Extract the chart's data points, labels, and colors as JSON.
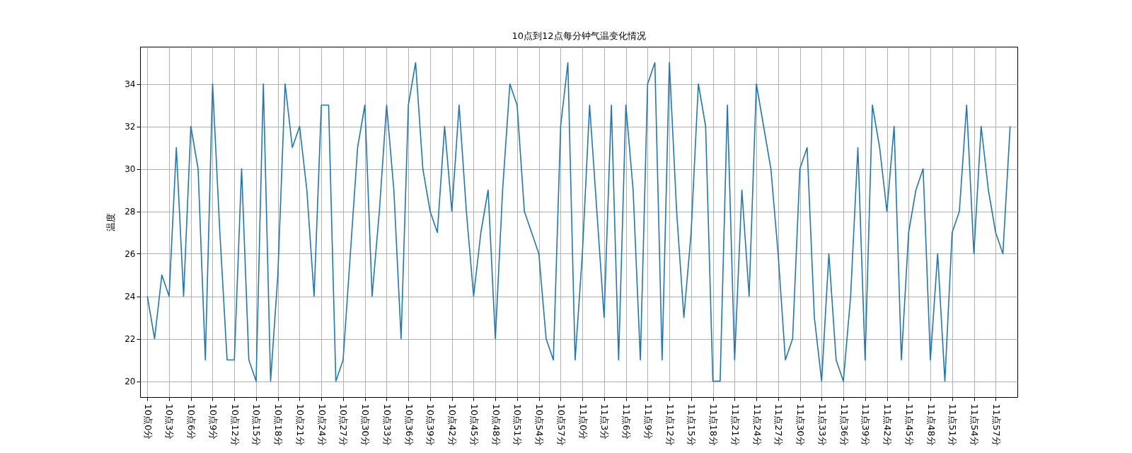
{
  "chart_data": {
    "type": "line",
    "title": "10点到12点每分钟气温变化情况",
    "ylabel": "温度",
    "categories": [
      "10点0分",
      null,
      null,
      "10点3分",
      null,
      null,
      "10点6分",
      null,
      null,
      "10点9分",
      null,
      null,
      "10点12分",
      null,
      null,
      "10点15分",
      null,
      null,
      "10点18分",
      null,
      null,
      "10点21分",
      null,
      null,
      "10点24分",
      null,
      null,
      "10点27分",
      null,
      null,
      "10点30分",
      null,
      null,
      "10点33分",
      null,
      null,
      "10点36分",
      null,
      null,
      "10点39分",
      null,
      null,
      "10点42分",
      null,
      null,
      "10点45分",
      null,
      null,
      "10点48分",
      null,
      null,
      "10点51分",
      null,
      null,
      "10点54分",
      null,
      null,
      "10点57分",
      null,
      null,
      "11点0分",
      null,
      null,
      "11点3分",
      null,
      null,
      "11点6分",
      null,
      null,
      "11点9分",
      null,
      null,
      "11点12分",
      null,
      null,
      "11点15分",
      null,
      null,
      "11点18分",
      null,
      null,
      "11点21分",
      null,
      null,
      "11点24分",
      null,
      null,
      "11点27分",
      null,
      null,
      "11点30分",
      null,
      null,
      "11点33分",
      null,
      null,
      "11点36分",
      null,
      null,
      "11点39分",
      null,
      null,
      "11点42分",
      null,
      null,
      "11点45分",
      null,
      null,
      "11点48分",
      null,
      null,
      "11点51分",
      null,
      null,
      "11点54分",
      null,
      null,
      "11点57分",
      null,
      null
    ],
    "series": [
      {
        "color": "#1f77b4",
        "values": [
          24,
          22,
          25,
          24,
          31,
          24,
          32,
          30,
          21,
          34,
          27,
          21,
          21,
          30,
          21,
          20,
          34,
          20,
          25,
          34,
          31,
          32,
          29,
          24,
          33,
          33,
          20,
          21,
          26,
          31,
          33,
          24,
          28,
          33,
          29,
          22,
          33,
          35,
          30,
          28,
          27,
          32,
          28,
          33,
          28,
          24,
          27,
          29,
          22,
          29,
          34,
          33,
          28,
          27,
          26,
          22,
          21,
          32,
          35,
          21,
          26,
          33,
          28,
          23,
          33,
          21,
          33,
          29,
          21,
          34,
          35,
          21,
          35,
          28,
          23,
          27,
          34,
          32,
          20,
          20,
          33,
          21,
          29,
          24,
          34,
          32,
          30,
          26,
          21,
          22,
          30,
          31,
          23,
          20,
          26,
          21,
          20,
          24,
          31,
          21,
          33,
          31,
          28,
          32,
          21,
          27,
          29,
          30,
          21,
          26,
          20,
          27,
          28,
          33,
          26,
          32,
          29,
          27,
          26,
          32
        ]
      }
    ],
    "ylim": [
      19.25,
      35.75
    ],
    "yticks": [
      20,
      22,
      24,
      26,
      28,
      30,
      32,
      34
    ],
    "grid": true
  }
}
